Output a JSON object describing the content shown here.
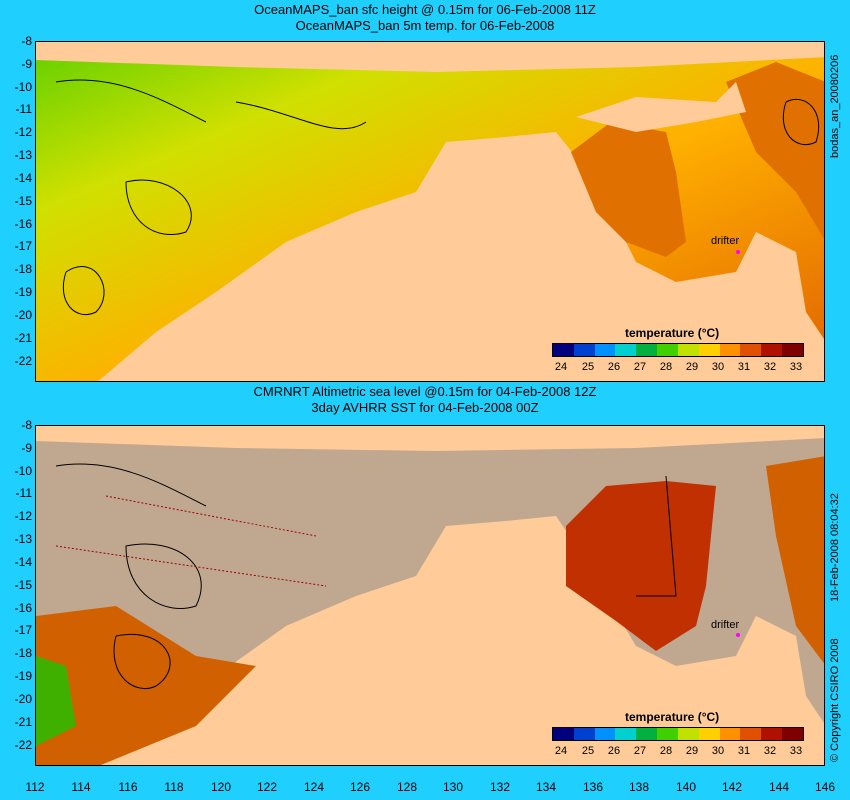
{
  "top": {
    "title1": "OceanMAPS_ban sfc height @ 0.15m for 06-Feb-2008 11Z",
    "title2": "OceanMAPS_ban 5m temp. for 06-Feb-2008"
  },
  "bottom": {
    "title1": "CMRNRT Altimetric sea level  @0.15m  for 04-Feb-2008 12Z",
    "title2": "3day AVHRR SST for 04-Feb-2008 00Z"
  },
  "y_ticks": [
    "-8",
    "-9",
    "-10",
    "-11",
    "-12",
    "-13",
    "-14",
    "-15",
    "-16",
    "-17",
    "-18",
    "-19",
    "-20",
    "-21",
    "-22"
  ],
  "x_ticks": [
    "112",
    "114",
    "116",
    "118",
    "120",
    "122",
    "124",
    "126",
    "128",
    "130",
    "132",
    "134",
    "136",
    "138",
    "140",
    "142",
    "144",
    "146"
  ],
  "legend": {
    "title": "temperature (°C)",
    "ticks": [
      "24",
      "25",
      "26",
      "27",
      "28",
      "29",
      "30",
      "31",
      "32",
      "33"
    ],
    "colors": [
      "#00007f",
      "#0040d0",
      "#0090ff",
      "#00d0d0",
      "#00b040",
      "#40d000",
      "#c0e000",
      "#ffd000",
      "#ff9000",
      "#e05000",
      "#b01000",
      "#7f0000"
    ]
  },
  "drifter_label": "drifter",
  "side_top": "bodas_an_20080206",
  "side_bottom_left": "© Copyright CSIRO 2008",
  "side_bottom_right": "18-Feb-2008 08:04:32",
  "colors": {
    "land": "#ffcc99",
    "background": "#1fd0ff",
    "nodata": "#c0a890"
  }
}
